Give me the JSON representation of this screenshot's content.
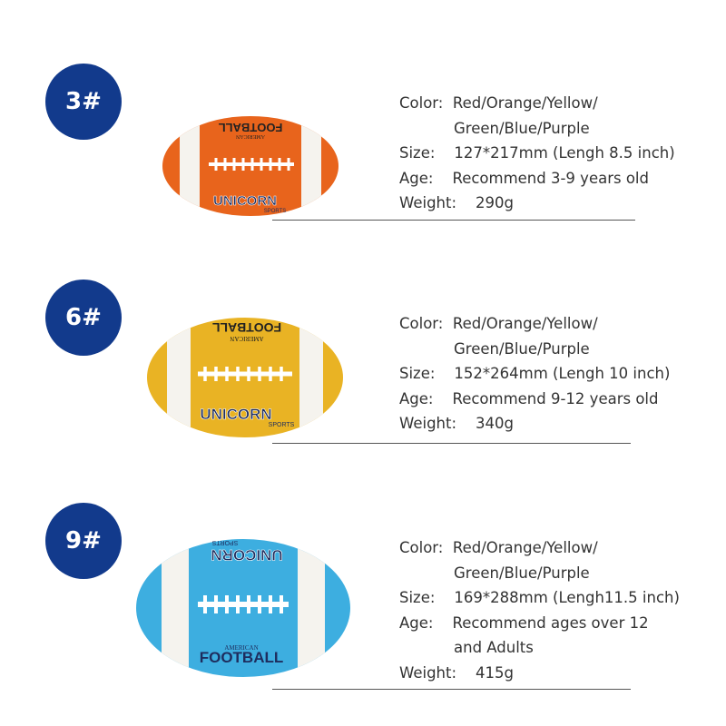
{
  "products": [
    {
      "size_badge": "3#",
      "ball": {
        "top_text": "FOOTBALL",
        "sub_text": "AMERICAN",
        "logo": "UNICORN",
        "logo_sub": "SPORTS",
        "color": "#e8641c",
        "stripe": "#f5f3ee"
      },
      "specs": {
        "color_label": "Color:",
        "color_value_1": "Red/Orange/Yellow/",
        "color_value_2": "Green/Blue/Purple",
        "size_label": "Size:",
        "size_value": "127*217mm (Lengh 8.5 inch)",
        "age_label": "Age:",
        "age_value_1": "Recommend 3-9 years old",
        "age_value_2": "",
        "weight_label": "Weight:",
        "weight_value": "290g"
      }
    },
    {
      "size_badge": "6#",
      "ball": {
        "top_text": "FOOTBALL",
        "sub_text": "AMERICAN",
        "logo": "UNICORN",
        "logo_sub": "SPORTS",
        "color": "#e9b324",
        "stripe": "#f5f3ee"
      },
      "specs": {
        "color_label": "Color:",
        "color_value_1": "Red/Orange/Yellow/",
        "color_value_2": "Green/Blue/Purple",
        "size_label": "Size:",
        "size_value": "152*264mm (Lengh 10 inch)",
        "age_label": "Age:",
        "age_value_1": "Recommend 9-12 years old",
        "age_value_2": "",
        "weight_label": "Weight:",
        "weight_value": "340g"
      }
    },
    {
      "size_badge": "9#",
      "ball": {
        "top_text": "UNICORN",
        "sub_text": "SPORTS",
        "logo": "FOOTBALL",
        "logo_sub": "AMERICAN",
        "color": "#3daee0",
        "stripe": "#f5f3ee"
      },
      "specs": {
        "color_label": "Color:",
        "color_value_1": "Red/Orange/Yellow/",
        "color_value_2": "Green/Blue/Purple",
        "size_label": "Size:",
        "size_value": "169*288mm (Lengh11.5 inch)",
        "age_label": "Age:",
        "age_value_1": "Recommend ages over 12",
        "age_value_2": "and Adults",
        "weight_label": "Weight:",
        "weight_value": "415g"
      }
    }
  ]
}
